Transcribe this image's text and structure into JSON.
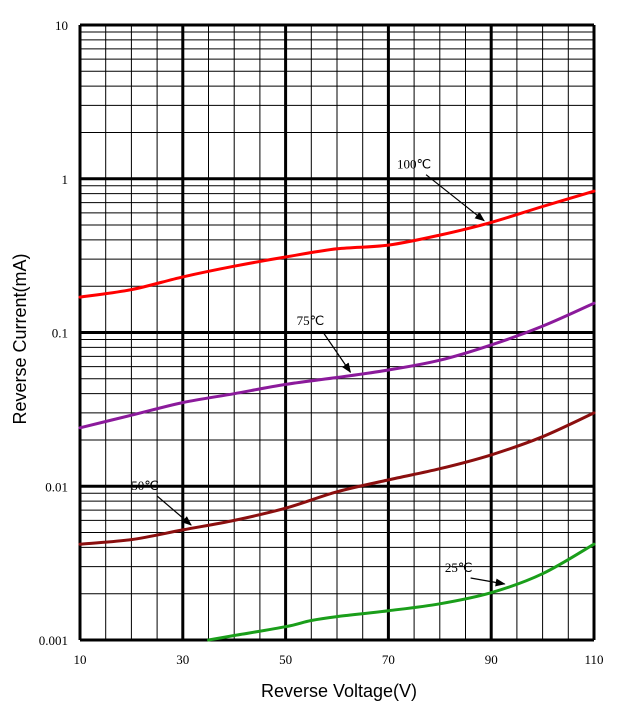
{
  "chart_data": {
    "type": "line",
    "title": "",
    "xlabel": "Reverse Voltage(V)",
    "ylabel": "Reverse Current(mA)",
    "x_scale": "linear",
    "y_scale": "log",
    "xlim": [
      10,
      110
    ],
    "ylim": [
      0.001,
      10
    ],
    "grid": true,
    "x_ticks": [
      {
        "value": 10,
        "label": "10"
      },
      {
        "value": 30,
        "label": "30"
      },
      {
        "value": 50,
        "label": "50"
      },
      {
        "value": 70,
        "label": "70"
      },
      {
        "value": 90,
        "label": "90"
      },
      {
        "value": 110,
        "label": "110"
      }
    ],
    "y_ticks": [
      {
        "value": 0.001,
        "label": "0.001"
      },
      {
        "value": 0.01,
        "label": "0.01"
      },
      {
        "value": 0.1,
        "label": "0.1"
      },
      {
        "value": 1,
        "label": "1"
      },
      {
        "value": 10,
        "label": "10"
      }
    ],
    "series": [
      {
        "name": "100℃",
        "color": "#ff0000",
        "x": [
          10,
          20,
          30,
          40,
          50,
          60,
          70,
          80,
          90,
          100,
          110
        ],
        "y": [
          0.17,
          0.19,
          0.23,
          0.27,
          0.31,
          0.35,
          0.37,
          0.43,
          0.52,
          0.66,
          0.83
        ]
      },
      {
        "name": "75℃",
        "color": "#8b1a9b",
        "x": [
          10,
          20,
          30,
          40,
          50,
          60,
          70,
          80,
          90,
          100,
          110
        ],
        "y": [
          0.024,
          0.029,
          0.035,
          0.04,
          0.046,
          0.051,
          0.057,
          0.066,
          0.083,
          0.11,
          0.155
        ]
      },
      {
        "name": "50℃",
        "color": "#8b0f0f",
        "x": [
          10,
          20,
          30,
          40,
          50,
          60,
          70,
          80,
          90,
          100,
          110
        ],
        "y": [
          0.0042,
          0.0045,
          0.0052,
          0.006,
          0.0072,
          0.0092,
          0.011,
          0.013,
          0.016,
          0.021,
          0.03
        ]
      },
      {
        "name": "25℃",
        "color": "#1a9e1a",
        "x": [
          35,
          40,
          50,
          55,
          60,
          70,
          80,
          90,
          100,
          110
        ],
        "y": [
          0.001,
          0.00107,
          0.00122,
          0.00134,
          0.00142,
          0.00155,
          0.00172,
          0.00203,
          0.0027,
          0.0042
        ]
      }
    ],
    "annotations": [
      {
        "text": "100℃",
        "series": 0,
        "x": 89
      },
      {
        "text": "75℃",
        "series": 1,
        "x": 63
      },
      {
        "text": "50℃",
        "series": 2,
        "x": 32
      },
      {
        "text": "25℃",
        "series": 3,
        "x": 93
      }
    ],
    "colors": {
      "grid": "#000000",
      "arrow": "#000000"
    }
  }
}
